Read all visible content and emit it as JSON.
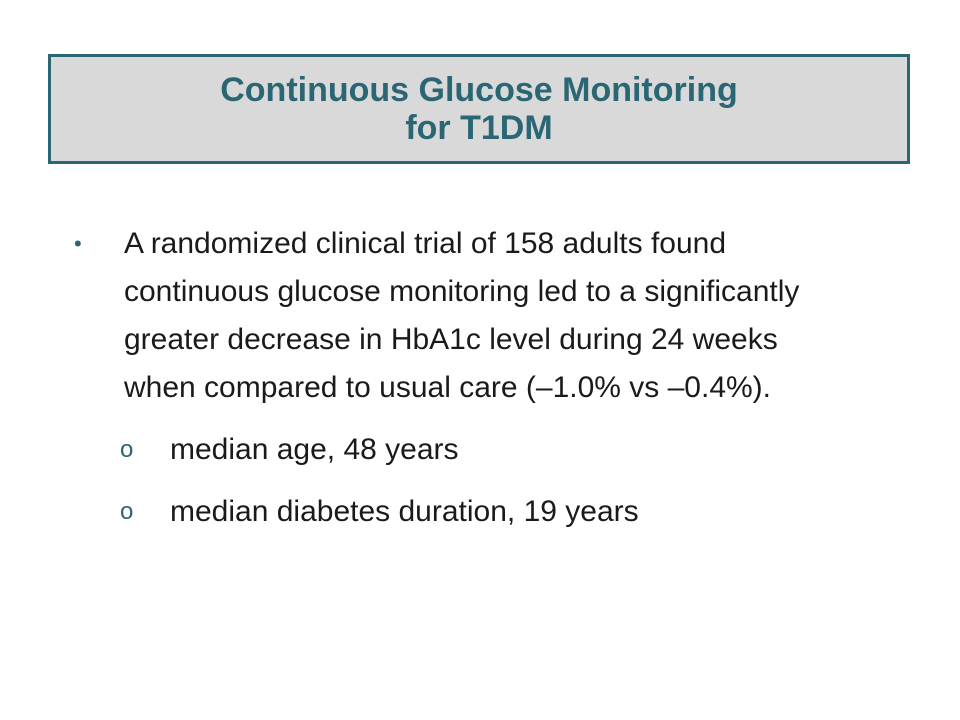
{
  "title": {
    "line1": "Continuous Glucose Monitoring",
    "line2": "for T1DM"
  },
  "bullets": [
    {
      "marker": "•",
      "text": "A randomized clinical trial of 158 adults found continuous glucose monitoring led to a significantly greater decrease in HbA1c level during 24 weeks when compared to usual care (–1.0% vs –0.4%).",
      "sub": [
        {
          "marker": "o",
          "text": "median age, 48 years"
        },
        {
          "marker": "o",
          "text": "median diabetes duration, 19 years"
        }
      ]
    }
  ],
  "colors": {
    "accent": "#2b6675",
    "title_bg": "#d9d9d9",
    "body_text": "#1a1a1a"
  }
}
